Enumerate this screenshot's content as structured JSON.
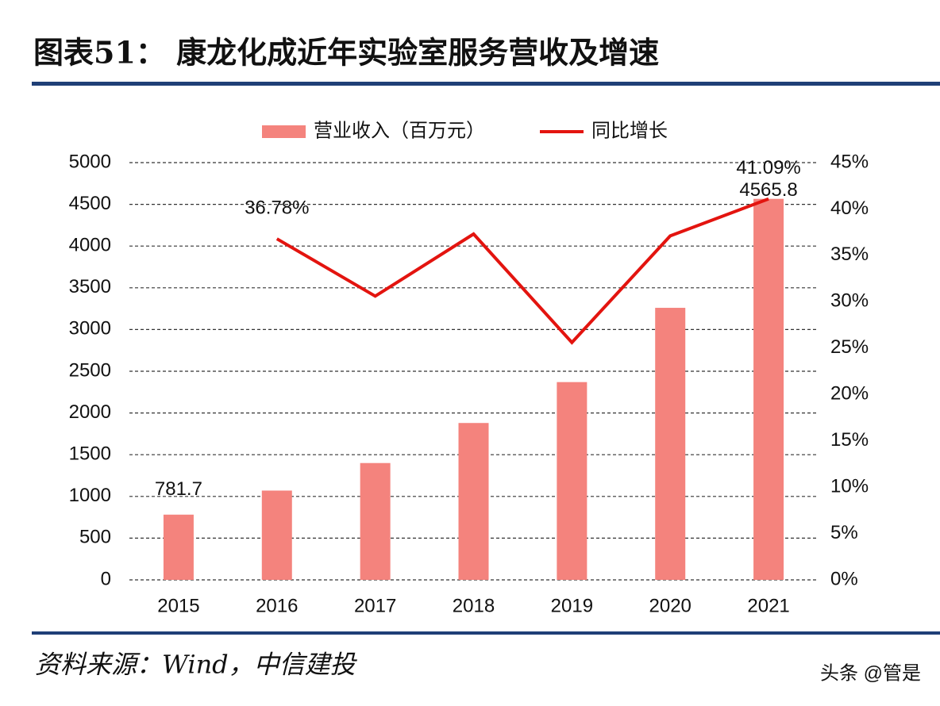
{
  "chart_data": {
    "type": "bar-line",
    "title": "图表51：  康龙化成近年实验室服务营收及增速",
    "source": "资料来源：Wind，中信建投",
    "watermark": "头条 @管是",
    "categories": [
      "2015",
      "2016",
      "2017",
      "2018",
      "2019",
      "2020",
      "2021"
    ],
    "series": [
      {
        "name": "营业收入（百万元）",
        "type": "bar",
        "color": "#f4837d",
        "axis": "y",
        "values": [
          781.7,
          1070,
          1400,
          1880,
          2370,
          3260,
          4565.8
        ],
        "value_labels": [
          "781.7",
          null,
          null,
          null,
          null,
          null,
          "4565.8"
        ]
      },
      {
        "name": "同比增长",
        "type": "line",
        "color": "#e3140f",
        "axis": "y2",
        "values": [
          null,
          36.78,
          30.6,
          37.3,
          25.6,
          37.1,
          41.09
        ],
        "value_labels": [
          null,
          "36.78%",
          null,
          null,
          null,
          null,
          "41.09%"
        ]
      }
    ],
    "ylim": [
      0,
      5000
    ],
    "yticks": [
      0,
      500,
      1000,
      1500,
      2000,
      2500,
      3000,
      3500,
      4000,
      4500,
      5000
    ],
    "y2lim": [
      0,
      45
    ],
    "y2ticks": [
      {
        "value": 0,
        "label": "0%"
      },
      {
        "value": 5,
        "label": "5%"
      },
      {
        "value": 10,
        "label": "10%"
      },
      {
        "value": 15,
        "label": "15%"
      },
      {
        "value": 20,
        "label": "20%"
      },
      {
        "value": 25,
        "label": "25%"
      },
      {
        "value": 30,
        "label": "30%"
      },
      {
        "value": 35,
        "label": "35%"
      },
      {
        "value": 40,
        "label": "40%"
      },
      {
        "value": 45,
        "label": "45%"
      }
    ],
    "grid": true,
    "legend": "top"
  }
}
